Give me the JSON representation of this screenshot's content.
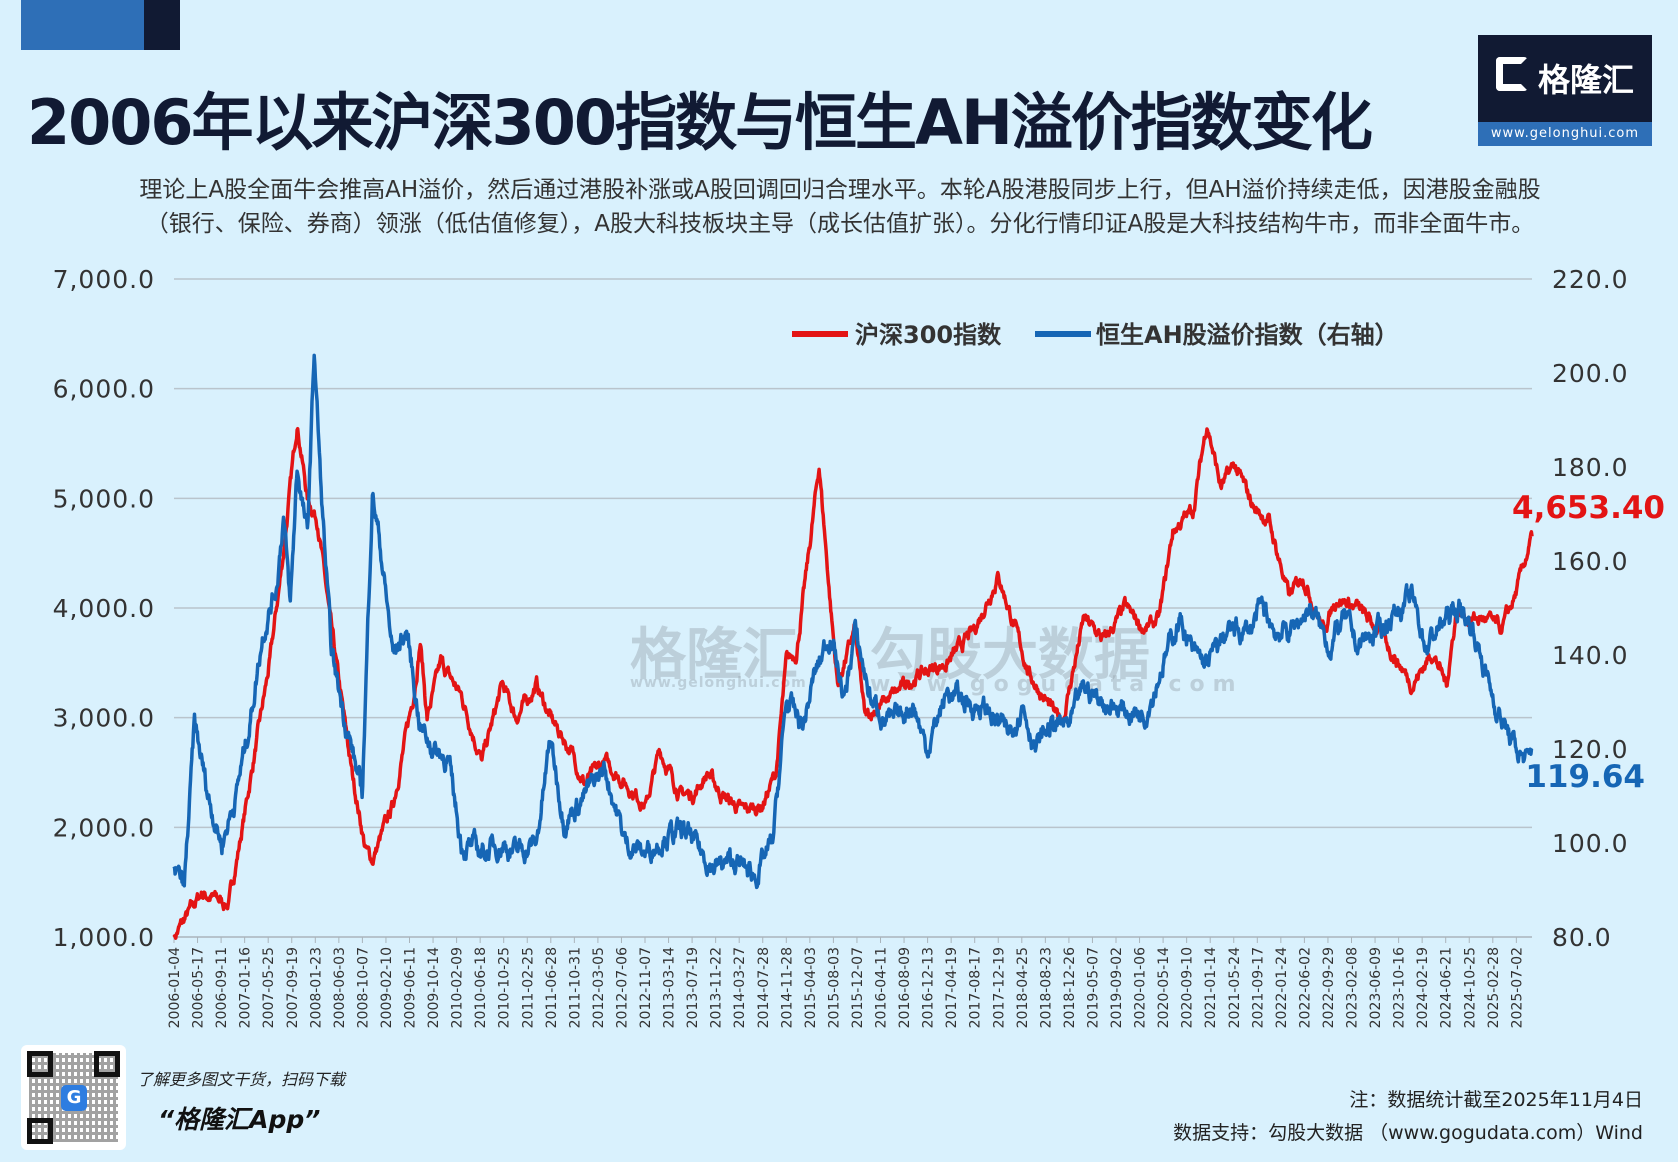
{
  "header": {
    "title": "2006年以来沪深300指数与恒生AH溢价指数变化",
    "subtitle_lines": [
      "理论上A股全面牛会推高AH溢价，然后通过港股补涨或A股回调回归合理水平。本轮A股港股同步上行，但AH溢价持续走低，因港股金融股",
      "（银行、保险、券商）领涨（低估值修复），A股大科技板块主导（成长估值扩张）。分化行情印证A股是大科技结构牛市，而非全面牛市。"
    ],
    "logo_name": "格隆汇",
    "logo_url": "www.gelonghui.com"
  },
  "watermarks": {
    "gelonghui_name": "格隆汇",
    "gelonghui_url": "www.gelonghui.com",
    "gogudata_name": "勾股大数据",
    "gogudata_url": "www.gogudata.com"
  },
  "footer": {
    "promo_line": "了解更多图文干货，扫码下载",
    "app_name": "“格隆汇App”",
    "note": "注：数据统计截至2025年11月4日",
    "source": "数据支持：勾股大数据 （www.gogudata.com）Wind"
  },
  "colors": {
    "hs300": "#e31414",
    "ah": "#1666b5",
    "grid": "#b9c4cc"
  },
  "chart_data": {
    "type": "line",
    "title": "2006年以来沪深300指数与恒生AH溢价指数变化",
    "legend": [
      "沪深300指数",
      "恒生AH股溢价指数（右轴）"
    ],
    "legend_placement": "top-right",
    "grid": true,
    "left_axis": {
      "ylim": [
        1000,
        7000
      ],
      "ticks": [
        "1,000.0",
        "2,000.0",
        "3,000.0",
        "4,000.0",
        "5,000.0",
        "6,000.0",
        "7,000.0"
      ]
    },
    "right_axis": {
      "ylim": [
        80,
        220
      ],
      "ticks": [
        "80.0",
        "100.0",
        "120.0",
        "140.0",
        "160.0",
        "180.0",
        "200.0",
        "220.0"
      ]
    },
    "x_range_years": [
      2006.0,
      2025.85
    ],
    "x_tick_labels": [
      "2006-01-04",
      "2006-05-17",
      "2006-09-11",
      "2007-01-16",
      "2007-05-25",
      "2007-09-19",
      "2008-01-23",
      "2008-06-03",
      "2008-10-07",
      "2009-02-10",
      "2009-06-11",
      "2009-10-14",
      "2010-02-09",
      "2010-06-18",
      "2010-10-25",
      "2011-02-25",
      "2011-06-28",
      "2011-10-31",
      "2012-03-05",
      "2012-07-06",
      "2012-11-07",
      "2013-03-14",
      "2013-07-19",
      "2013-11-22",
      "2014-03-27",
      "2014-07-28",
      "2014-11-28",
      "2015-04-03",
      "2015-08-03",
      "2015-12-07",
      "2016-04-11",
      "2016-08-09",
      "2016-12-13",
      "2017-04-19",
      "2017-08-17",
      "2017-12-19",
      "2018-04-25",
      "2018-08-23",
      "2018-12-26",
      "2019-05-07",
      "2019-09-02",
      "2020-01-06",
      "2020-05-14",
      "2020-09-10",
      "2021-01-14",
      "2021-05-24",
      "2021-09-17",
      "2022-01-24",
      "2022-06-02",
      "2022-09-29",
      "2023-02-08",
      "2023-06-09",
      "2023-10-16",
      "2024-02-19",
      "2024-06-21",
      "2024-10-25",
      "2025-02-28",
      "2025-07-02"
    ],
    "series": [
      {
        "name": "沪深300指数",
        "axis": "left",
        "last_label": "4,653.40",
        "points": [
          [
            2006.0,
            1000
          ],
          [
            2006.4,
            1400
          ],
          [
            2006.8,
            1300
          ],
          [
            2007.0,
            2000
          ],
          [
            2007.4,
            3500
          ],
          [
            2007.6,
            4500
          ],
          [
            2007.8,
            5700
          ],
          [
            2007.95,
            5000
          ],
          [
            2008.1,
            4800
          ],
          [
            2008.3,
            3800
          ],
          [
            2008.6,
            2500
          ],
          [
            2008.8,
            1800
          ],
          [
            2008.9,
            1700
          ],
          [
            2009.2,
            2200
          ],
          [
            2009.5,
            3200
          ],
          [
            2009.6,
            3700
          ],
          [
            2009.7,
            3000
          ],
          [
            2009.9,
            3500
          ],
          [
            2010.2,
            3200
          ],
          [
            2010.5,
            2600
          ],
          [
            2010.8,
            3300
          ],
          [
            2011.0,
            3000
          ],
          [
            2011.3,
            3300
          ],
          [
            2011.5,
            3000
          ],
          [
            2011.8,
            2700
          ],
          [
            2012.0,
            2400
          ],
          [
            2012.3,
            2600
          ],
          [
            2012.6,
            2400
          ],
          [
            2012.9,
            2200
          ],
          [
            2013.1,
            2700
          ],
          [
            2013.4,
            2300
          ],
          [
            2013.6,
            2300
          ],
          [
            2013.8,
            2500
          ],
          [
            2014.0,
            2300
          ],
          [
            2014.3,
            2150
          ],
          [
            2014.6,
            2200
          ],
          [
            2014.8,
            2500
          ],
          [
            2014.95,
            3500
          ],
          [
            2015.1,
            3600
          ],
          [
            2015.3,
            4600
          ],
          [
            2015.43,
            5300
          ],
          [
            2015.6,
            4000
          ],
          [
            2015.7,
            3300
          ],
          [
            2015.95,
            3800
          ],
          [
            2016.1,
            3000
          ],
          [
            2016.5,
            3200
          ],
          [
            2016.9,
            3400
          ],
          [
            2017.3,
            3500
          ],
          [
            2017.7,
            3800
          ],
          [
            2018.05,
            4300
          ],
          [
            2018.3,
            3800
          ],
          [
            2018.5,
            3400
          ],
          [
            2018.9,
            3000
          ],
          [
            2019.0,
            3000
          ],
          [
            2019.3,
            3900
          ],
          [
            2019.6,
            3700
          ],
          [
            2019.9,
            4000
          ],
          [
            2020.2,
            3800
          ],
          [
            2020.4,
            3900
          ],
          [
            2020.6,
            4700
          ],
          [
            2020.9,
            4900
          ],
          [
            2021.1,
            5700
          ],
          [
            2021.3,
            5100
          ],
          [
            2021.5,
            5300
          ],
          [
            2021.8,
            4900
          ],
          [
            2022.0,
            4800
          ],
          [
            2022.3,
            4100
          ],
          [
            2022.5,
            4300
          ],
          [
            2022.8,
            3800
          ],
          [
            2023.0,
            4100
          ],
          [
            2023.3,
            4000
          ],
          [
            2023.6,
            3800
          ],
          [
            2023.9,
            3500
          ],
          [
            2024.1,
            3300
          ],
          [
            2024.4,
            3600
          ],
          [
            2024.6,
            3300
          ],
          [
            2024.75,
            4000
          ],
          [
            2024.9,
            3900
          ],
          [
            2025.2,
            3900
          ],
          [
            2025.4,
            3800
          ],
          [
            2025.6,
            4100
          ],
          [
            2025.85,
            4653.4
          ]
        ]
      },
      {
        "name": "恒生AH股溢价指数（右轴）",
        "axis": "right",
        "last_label": "119.64",
        "points": [
          [
            2006.0,
            95
          ],
          [
            2006.15,
            90
          ],
          [
            2006.3,
            125
          ],
          [
            2006.5,
            110
          ],
          [
            2006.7,
            100
          ],
          [
            2006.9,
            110
          ],
          [
            2007.1,
            125
          ],
          [
            2007.3,
            145
          ],
          [
            2007.5,
            155
          ],
          [
            2007.6,
            170
          ],
          [
            2007.7,
            150
          ],
          [
            2007.8,
            180
          ],
          [
            2007.95,
            165
          ],
          [
            2008.05,
            205
          ],
          [
            2008.15,
            175
          ],
          [
            2008.3,
            140
          ],
          [
            2008.6,
            120
          ],
          [
            2008.75,
            110
          ],
          [
            2008.9,
            175
          ],
          [
            2009.0,
            165
          ],
          [
            2009.2,
            140
          ],
          [
            2009.4,
            145
          ],
          [
            2009.6,
            125
          ],
          [
            2009.8,
            120
          ],
          [
            2010.0,
            118
          ],
          [
            2010.2,
            100
          ],
          [
            2010.5,
            98
          ],
          [
            2010.8,
            100
          ],
          [
            2011.0,
            98
          ],
          [
            2011.3,
            100
          ],
          [
            2011.5,
            122
          ],
          [
            2011.7,
            105
          ],
          [
            2012.0,
            110
          ],
          [
            2012.3,
            116
          ],
          [
            2012.6,
            100
          ],
          [
            2012.9,
            98
          ],
          [
            2013.2,
            102
          ],
          [
            2013.5,
            102
          ],
          [
            2013.7,
            98
          ],
          [
            2013.9,
            95
          ],
          [
            2014.2,
            96
          ],
          [
            2014.5,
            93
          ],
          [
            2014.75,
            100
          ],
          [
            2014.95,
            130
          ],
          [
            2015.2,
            125
          ],
          [
            2015.35,
            135
          ],
          [
            2015.6,
            145
          ],
          [
            2015.8,
            130
          ],
          [
            2015.95,
            145
          ],
          [
            2016.2,
            130
          ],
          [
            2016.5,
            125
          ],
          [
            2016.8,
            130
          ],
          [
            2017.0,
            120
          ],
          [
            2017.3,
            132
          ],
          [
            2017.6,
            130
          ],
          [
            2017.9,
            128
          ],
          [
            2018.2,
            123
          ],
          [
            2018.4,
            130
          ],
          [
            2018.6,
            120
          ],
          [
            2018.8,
            125
          ],
          [
            2019.1,
            125
          ],
          [
            2019.3,
            133
          ],
          [
            2019.6,
            130
          ],
          [
            2019.9,
            128
          ],
          [
            2020.2,
            128
          ],
          [
            2020.5,
            140
          ],
          [
            2020.7,
            148
          ],
          [
            2020.9,
            140
          ],
          [
            2021.1,
            138
          ],
          [
            2021.4,
            145
          ],
          [
            2021.7,
            145
          ],
          [
            2021.9,
            150
          ],
          [
            2022.1,
            145
          ],
          [
            2022.3,
            145
          ],
          [
            2022.6,
            150
          ],
          [
            2022.9,
            142
          ],
          [
            2023.1,
            148
          ],
          [
            2023.3,
            142
          ],
          [
            2023.6,
            145
          ],
          [
            2023.9,
            150
          ],
          [
            2024.1,
            152
          ],
          [
            2024.3,
            142
          ],
          [
            2024.6,
            148
          ],
          [
            2024.8,
            150
          ],
          [
            2025.0,
            145
          ],
          [
            2025.3,
            130
          ],
          [
            2025.6,
            120
          ],
          [
            2025.8,
            117
          ],
          [
            2025.85,
            119.64
          ]
        ]
      }
    ]
  }
}
